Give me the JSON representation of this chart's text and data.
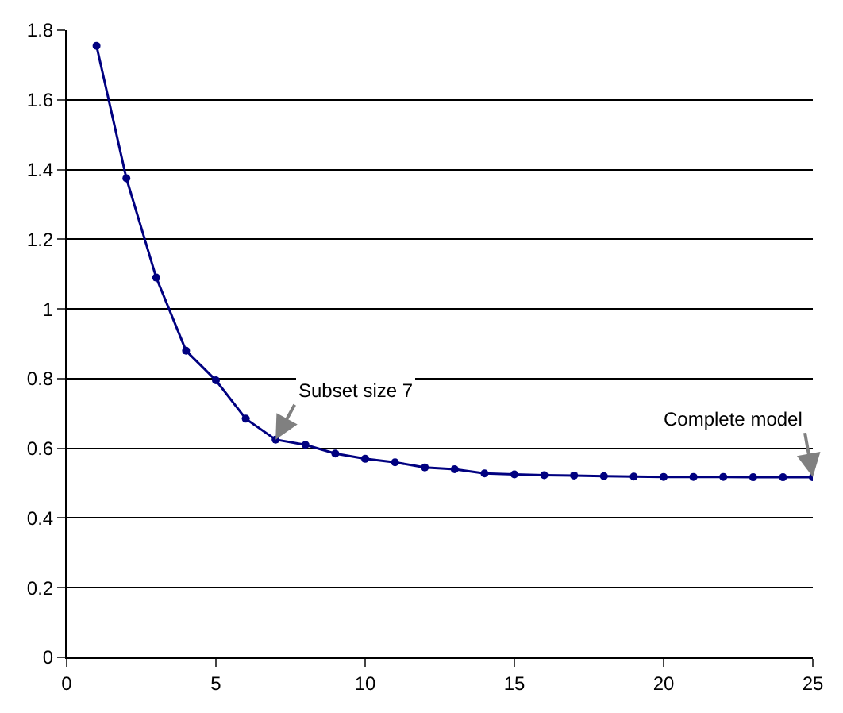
{
  "chart_data": {
    "type": "line",
    "x": [
      1,
      2,
      3,
      4,
      5,
      6,
      7,
      8,
      9,
      10,
      11,
      12,
      13,
      14,
      15,
      16,
      17,
      18,
      19,
      20,
      21,
      22,
      23,
      24,
      25
    ],
    "series": [
      {
        "color": "#000080",
        "values": [
          1.755,
          1.375,
          1.09,
          0.88,
          0.795,
          0.685,
          0.625,
          0.61,
          0.585,
          0.57,
          0.56,
          0.545,
          0.54,
          0.528,
          0.525,
          0.523,
          0.522,
          0.52,
          0.519,
          0.518,
          0.518,
          0.518,
          0.517,
          0.517,
          0.517
        ]
      }
    ],
    "xlim": [
      0,
      25
    ],
    "xticks": [
      0,
      5,
      10,
      15,
      20,
      25
    ],
    "ylim": [
      0,
      1.8
    ],
    "yticks": [
      0,
      0.2,
      0.4,
      0.6,
      0.8,
      1,
      1.2,
      1.4,
      1.6,
      1.8
    ],
    "grid": "y",
    "marker": "circle",
    "line_style": "solid",
    "legend": false,
    "annotations": [
      {
        "text": "Subset size 7",
        "x": 7,
        "y": 0.625
      },
      {
        "text": "Complete model",
        "x": 25,
        "y": 0.517
      }
    ]
  }
}
